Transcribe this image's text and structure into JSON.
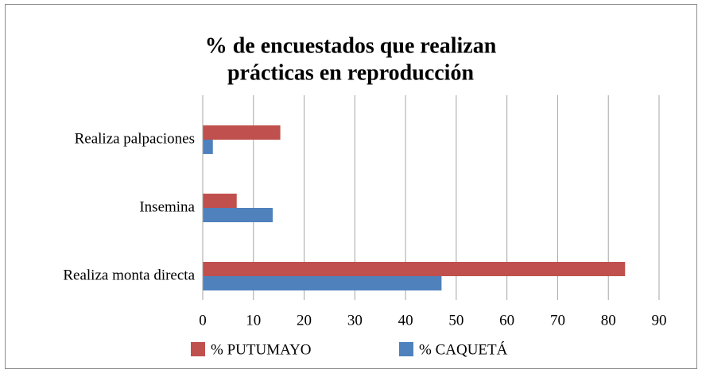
{
  "chart_data": {
    "type": "hbar",
    "title": [
      "% de encuestados que realizan",
      "prácticas en reproducción"
    ],
    "categories": [
      "Realiza palpaciones",
      "Insemina",
      "Realiza monta directa"
    ],
    "series": [
      {
        "name": "% PUTUMAYO",
        "color": "#c0504d",
        "values": [
          15.3,
          6.7,
          83.3
        ]
      },
      {
        "name": "% CAQUETÁ",
        "color": "#4f81bd",
        "values": [
          2,
          13.8,
          47.1
        ]
      }
    ],
    "xlim": [
      0,
      90
    ],
    "xticks": [
      0,
      10,
      20,
      30,
      40,
      50,
      60,
      70,
      80,
      90
    ],
    "grid": true
  }
}
